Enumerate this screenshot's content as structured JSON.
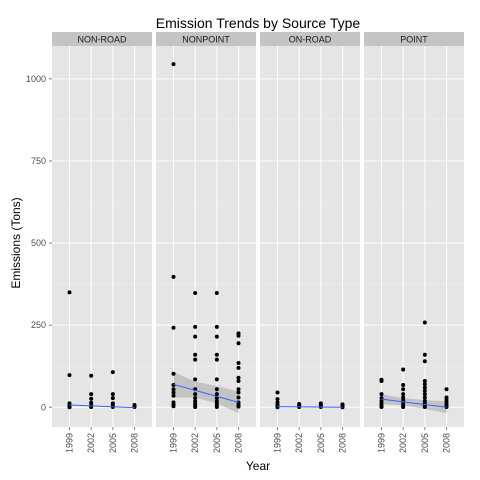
{
  "chart_data": {
    "type": "scatter",
    "title": "Emission Trends by Source Type",
    "xlabel": "Year",
    "ylabel": "Emissions (Tons)",
    "x_categories": [
      1999,
      2002,
      2005,
      2008
    ],
    "x_tick_labels": [
      "1999",
      "2002",
      "2005",
      "2008"
    ],
    "y_ticks": [
      0,
      250,
      500,
      750,
      1000
    ],
    "y_tick_labels": [
      "0",
      "250",
      "500",
      "750",
      "1000"
    ],
    "ylim": [
      -60,
      1100
    ],
    "grid": true,
    "colors": {
      "panel_bg": "#e5e5e5",
      "strip_bg": "#c4c4c4",
      "point": "#000000",
      "trend_line": "#3366ff",
      "confidence_band": "#999999"
    },
    "panels": [
      {
        "name": "NON-ROAD",
        "points": [
          {
            "x": 1999,
            "y": 350
          },
          {
            "x": 1999,
            "y": 98
          },
          {
            "x": 1999,
            "y": 12
          },
          {
            "x": 1999,
            "y": 6
          },
          {
            "x": 1999,
            "y": 2
          },
          {
            "x": 1999,
            "y": 0
          },
          {
            "x": 2002,
            "y": 96
          },
          {
            "x": 2002,
            "y": 40
          },
          {
            "x": 2002,
            "y": 26
          },
          {
            "x": 2002,
            "y": 14
          },
          {
            "x": 2002,
            "y": 6
          },
          {
            "x": 2002,
            "y": 1
          },
          {
            "x": 2005,
            "y": 107
          },
          {
            "x": 2005,
            "y": 40
          },
          {
            "x": 2005,
            "y": 28
          },
          {
            "x": 2005,
            "y": 12
          },
          {
            "x": 2005,
            "y": 5
          },
          {
            "x": 2005,
            "y": 1
          },
          {
            "x": 2008,
            "y": 7
          },
          {
            "x": 2008,
            "y": 3
          },
          {
            "x": 2008,
            "y": 1
          }
        ],
        "trend": {
          "x": [
            1999,
            2008
          ],
          "y": [
            7,
            -1
          ]
        },
        "band": null
      },
      {
        "name": "NONPOINT",
        "points": [
          {
            "x": 1999,
            "y": 1045
          },
          {
            "x": 1999,
            "y": 397
          },
          {
            "x": 1999,
            "y": 242
          },
          {
            "x": 1999,
            "y": 102
          },
          {
            "x": 1999,
            "y": 68
          },
          {
            "x": 1999,
            "y": 55
          },
          {
            "x": 1999,
            "y": 45
          },
          {
            "x": 1999,
            "y": 35
          },
          {
            "x": 1999,
            "y": 15
          },
          {
            "x": 1999,
            "y": 8
          },
          {
            "x": 1999,
            "y": 3
          },
          {
            "x": 2002,
            "y": 348
          },
          {
            "x": 2002,
            "y": 245
          },
          {
            "x": 2002,
            "y": 215
          },
          {
            "x": 2002,
            "y": 160
          },
          {
            "x": 2002,
            "y": 145
          },
          {
            "x": 2002,
            "y": 85
          },
          {
            "x": 2002,
            "y": 55
          },
          {
            "x": 2002,
            "y": 40
          },
          {
            "x": 2002,
            "y": 28
          },
          {
            "x": 2002,
            "y": 18
          },
          {
            "x": 2002,
            "y": 10
          },
          {
            "x": 2002,
            "y": 4
          },
          {
            "x": 2002,
            "y": 1
          },
          {
            "x": 2005,
            "y": 348
          },
          {
            "x": 2005,
            "y": 245
          },
          {
            "x": 2005,
            "y": 215
          },
          {
            "x": 2005,
            "y": 160
          },
          {
            "x": 2005,
            "y": 145
          },
          {
            "x": 2005,
            "y": 85
          },
          {
            "x": 2005,
            "y": 55
          },
          {
            "x": 2005,
            "y": 40
          },
          {
            "x": 2005,
            "y": 28
          },
          {
            "x": 2005,
            "y": 18
          },
          {
            "x": 2005,
            "y": 10
          },
          {
            "x": 2005,
            "y": 4
          },
          {
            "x": 2005,
            "y": 1
          },
          {
            "x": 2008,
            "y": 225
          },
          {
            "x": 2008,
            "y": 218
          },
          {
            "x": 2008,
            "y": 195
          },
          {
            "x": 2008,
            "y": 135
          },
          {
            "x": 2008,
            "y": 120
          },
          {
            "x": 2008,
            "y": 90
          },
          {
            "x": 2008,
            "y": 80
          },
          {
            "x": 2008,
            "y": 55
          },
          {
            "x": 2008,
            "y": 45
          },
          {
            "x": 2008,
            "y": 30
          },
          {
            "x": 2008,
            "y": 15
          },
          {
            "x": 2008,
            "y": 8
          },
          {
            "x": 2008,
            "y": 2
          }
        ],
        "trend": {
          "x": [
            1999,
            2008
          ],
          "y": [
            70,
            15
          ]
        },
        "band": {
          "x": [
            1999,
            2002,
            2005,
            2008
          ],
          "lower": [
            30,
            30,
            12,
            -18
          ],
          "upper": [
            108,
            78,
            65,
            48
          ]
        }
      },
      {
        "name": "ON-ROAD",
        "points": [
          {
            "x": 1999,
            "y": 45
          },
          {
            "x": 1999,
            "y": 25
          },
          {
            "x": 1999,
            "y": 15
          },
          {
            "x": 1999,
            "y": 8
          },
          {
            "x": 1999,
            "y": 3
          },
          {
            "x": 1999,
            "y": 0
          },
          {
            "x": 2002,
            "y": 10
          },
          {
            "x": 2002,
            "y": 6
          },
          {
            "x": 2002,
            "y": 3
          },
          {
            "x": 2002,
            "y": 1
          },
          {
            "x": 2005,
            "y": 12
          },
          {
            "x": 2005,
            "y": 8
          },
          {
            "x": 2005,
            "y": 4
          },
          {
            "x": 2005,
            "y": 1
          },
          {
            "x": 2008,
            "y": 9
          },
          {
            "x": 2008,
            "y": 5
          },
          {
            "x": 2008,
            "y": 2
          },
          {
            "x": 2008,
            "y": 0
          }
        ],
        "trend": {
          "x": [
            1999,
            2008
          ],
          "y": [
            2,
            0
          ]
        },
        "band": null
      },
      {
        "name": "POINT",
        "points": [
          {
            "x": 1999,
            "y": 84
          },
          {
            "x": 1999,
            "y": 80
          },
          {
            "x": 1999,
            "y": 40
          },
          {
            "x": 1999,
            "y": 28
          },
          {
            "x": 1999,
            "y": 18
          },
          {
            "x": 1999,
            "y": 10
          },
          {
            "x": 1999,
            "y": 4
          },
          {
            "x": 1999,
            "y": 1
          },
          {
            "x": 2002,
            "y": 115
          },
          {
            "x": 2002,
            "y": 68
          },
          {
            "x": 2002,
            "y": 55
          },
          {
            "x": 2002,
            "y": 40
          },
          {
            "x": 2002,
            "y": 30
          },
          {
            "x": 2002,
            "y": 22
          },
          {
            "x": 2002,
            "y": 15
          },
          {
            "x": 2002,
            "y": 8
          },
          {
            "x": 2002,
            "y": 3
          },
          {
            "x": 2002,
            "y": 1
          },
          {
            "x": 2005,
            "y": 258
          },
          {
            "x": 2005,
            "y": 160
          },
          {
            "x": 2005,
            "y": 140
          },
          {
            "x": 2005,
            "y": 80
          },
          {
            "x": 2005,
            "y": 70
          },
          {
            "x": 2005,
            "y": 60
          },
          {
            "x": 2005,
            "y": 50
          },
          {
            "x": 2005,
            "y": 40
          },
          {
            "x": 2005,
            "y": 30
          },
          {
            "x": 2005,
            "y": 20
          },
          {
            "x": 2005,
            "y": 12
          },
          {
            "x": 2005,
            "y": 5
          },
          {
            "x": 2005,
            "y": 1
          },
          {
            "x": 2008,
            "y": 55
          },
          {
            "x": 2008,
            "y": 30
          },
          {
            "x": 2008,
            "y": 22
          },
          {
            "x": 2008,
            "y": 15
          },
          {
            "x": 2008,
            "y": 8
          },
          {
            "x": 2008,
            "y": 3
          },
          {
            "x": 2008,
            "y": 1
          }
        ],
        "trend": {
          "x": [
            1999,
            2008
          ],
          "y": [
            25,
            0
          ]
        },
        "band": {
          "x": [
            1999,
            2002,
            2005,
            2008
          ],
          "lower": [
            10,
            6,
            -5,
            -18
          ],
          "upper": [
            40,
            28,
            22,
            18
          ]
        }
      }
    ]
  }
}
